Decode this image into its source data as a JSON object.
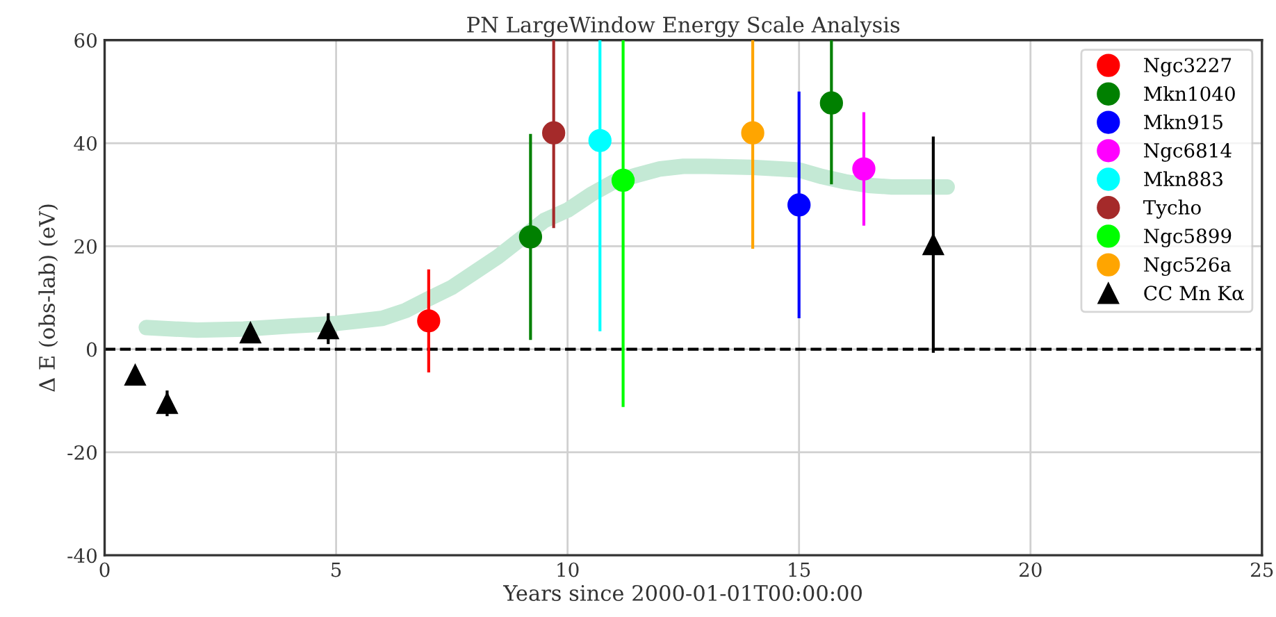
{
  "chart_data": {
    "type": "scatter",
    "title": "PN LargeWindow Energy Scale Analysis",
    "xlabel": "Years since 2000-01-01T00:00:00",
    "ylabel": "Δ E (obs-lab) (eV)",
    "xlim": [
      0,
      25
    ],
    "xticks": [
      0,
      5,
      10,
      15,
      20,
      25
    ],
    "ylim": [
      -40,
      60
    ],
    "yticks": [
      -40,
      -20,
      0,
      20,
      40,
      60
    ],
    "grid": true,
    "legend": "top right",
    "ref_lines": [
      {
        "axis": "y",
        "value": 0,
        "color": "#000000",
        "line_style": "dashed"
      }
    ],
    "series": [
      {
        "type": "line",
        "color": "#c4e9d5",
        "marker": "none",
        "x": [
          0.9,
          2,
          3,
          4,
          5,
          6,
          6.5,
          7,
          7.5,
          8,
          8.5,
          9,
          9.5,
          10,
          10.5,
          11,
          11.5,
          12,
          12.5,
          13,
          14,
          15,
          15.5,
          16,
          16.5,
          17,
          18.2
        ],
        "values": [
          4.2,
          3.7,
          3.9,
          4.5,
          5,
          6,
          7.5,
          9.8,
          12,
          15,
          18,
          21.5,
          25,
          27,
          30,
          32.5,
          33.8,
          35,
          35.5,
          35.5,
          35.3,
          34.8,
          33.5,
          32.5,
          31.8,
          31.5,
          31.5
        ]
      },
      {
        "name": "Ngc3227",
        "color": "#ff0000",
        "marker": "circle",
        "x": [
          7.0
        ],
        "values": [
          5.5
        ],
        "errors": [
          10
        ]
      },
      {
        "name": "Mkn1040",
        "color": "#008000",
        "marker": "circle",
        "x": [
          9.2,
          15.7
        ],
        "values": [
          21.8,
          47.8
        ],
        "errors": [
          20,
          [
            32,
            60
          ]
        ]
      },
      {
        "name": "Mkn915",
        "color": "#0000ff",
        "marker": "circle",
        "x": [
          15.0
        ],
        "values": [
          28
        ],
        "errors": [
          22
        ]
      },
      {
        "name": "Ngc6814",
        "color": "#ff00ff",
        "marker": "circle",
        "x": [
          16.4
        ],
        "values": [
          35
        ],
        "errors": [
          11
        ]
      },
      {
        "name": "Mkn883",
        "color": "#00ffff",
        "marker": "circle",
        "x": [
          10.7
        ],
        "values": [
          40.5
        ],
        "errors": [
          [
            3.5,
            60
          ]
        ]
      },
      {
        "name": "Tycho",
        "color": "#a52a2a",
        "marker": "circle",
        "x": [
          9.7
        ],
        "values": [
          42
        ],
        "errors": [
          [
            23.5,
            60
          ]
        ]
      },
      {
        "name": "Ngc5899",
        "color": "#00ff00",
        "marker": "circle",
        "x": [
          11.2
        ],
        "values": [
          32.8
        ],
        "errors": [
          [
            -11.2,
            60
          ]
        ]
      },
      {
        "name": "Ngc526a",
        "color": "#ffa500",
        "marker": "circle",
        "x": [
          14.0
        ],
        "values": [
          42
        ],
        "errors": [
          [
            19.5,
            60
          ]
        ]
      },
      {
        "name": "CC Mn Kα",
        "color": "#000000",
        "marker": "triangle",
        "x": [
          0.66,
          1.35,
          3.15,
          4.83,
          17.9
        ],
        "values": [
          -5,
          -10.5,
          3.2,
          4,
          20.3
        ],
        "errors": [
          null,
          2.5,
          null,
          3,
          21
        ]
      }
    ]
  }
}
